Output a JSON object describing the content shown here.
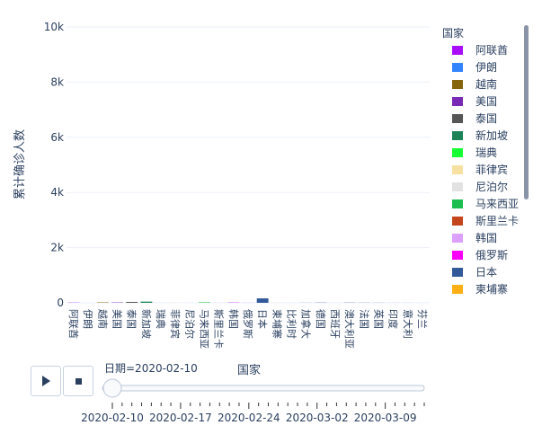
{
  "chart_data": {
    "type": "bar",
    "title": "",
    "xlabel": "国家",
    "ylabel": "累计确诊人数",
    "ylim": [
      0,
      10000
    ],
    "yticks": [
      0,
      2000,
      4000,
      6000,
      8000,
      10000
    ],
    "ytick_labels": [
      "0",
      "2k",
      "4k",
      "6k",
      "8k",
      "10k"
    ],
    "grid": true,
    "legend_title": "国家",
    "legend_position": "right",
    "categories": [
      "阿联酋",
      "伊朗",
      "越南",
      "美国",
      "泰国",
      "新加坡",
      "瑞典",
      "菲律宾",
      "尼泊尔",
      "马来西亚",
      "斯里兰卡",
      "韩国",
      "俄罗斯",
      "日本",
      "柬埔寨",
      "比利时",
      "加拿大",
      "德国",
      "西班牙",
      "澳大利亚",
      "法国",
      "英国",
      "印度",
      "意大利",
      "芬兰"
    ],
    "values": [
      8,
      0,
      16,
      13,
      32,
      43,
      1,
      3,
      1,
      18,
      1,
      27,
      2,
      161,
      1,
      1,
      7,
      16,
      2,
      15,
      11,
      8,
      3,
      3,
      1
    ],
    "legend": [
      {
        "name": "阿联酋",
        "color": "#AA0DFE"
      },
      {
        "name": "伊朗",
        "color": "#3283FE"
      },
      {
        "name": "越南",
        "color": "#85660D"
      },
      {
        "name": "美国",
        "color": "#782AB6"
      },
      {
        "name": "泰国",
        "color": "#565656"
      },
      {
        "name": "新加坡",
        "color": "#1C8356"
      },
      {
        "name": "瑞典",
        "color": "#16FF32"
      },
      {
        "name": "菲律宾",
        "color": "#F7E1A0"
      },
      {
        "name": "尼泊尔",
        "color": "#E2E2E2"
      },
      {
        "name": "马来西亚",
        "color": "#1CBE4F"
      },
      {
        "name": "斯里兰卡",
        "color": "#C4451C"
      },
      {
        "name": "韩国",
        "color": "#DEA0FD"
      },
      {
        "name": "俄罗斯",
        "color": "#FE00FA"
      },
      {
        "name": "日本",
        "color": "#325A9B"
      },
      {
        "name": "柬埔寨",
        "color": "#FEAF16"
      }
    ],
    "slider": {
      "current_label": "日期=2020-02-10",
      "tick_labels": [
        "2020-02-10",
        "2020-02-17",
        "2020-02-24",
        "2020-03-02",
        "2020-03-09"
      ],
      "steps": 33,
      "current_index": 0
    }
  }
}
